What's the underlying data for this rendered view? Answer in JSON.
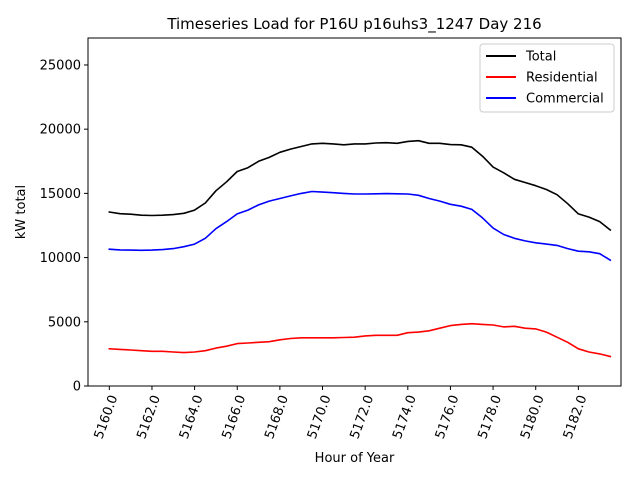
{
  "chart_data": {
    "type": "line",
    "title": "Timeseries Load for P16U p16uhs3_1247  Day 216",
    "xlabel": "Hour of Year",
    "ylabel": "kW total",
    "xlim": [
      5159.0,
      5184.0
    ],
    "ylim": [
      0,
      27100
    ],
    "x_ticks": [
      5160,
      5162,
      5164,
      5166,
      5168,
      5170,
      5172,
      5174,
      5176,
      5178,
      5180,
      5182
    ],
    "x_tick_labels": [
      "5160.0",
      "5162.0",
      "5164.0",
      "5166.0",
      "5168.0",
      "5170.0",
      "5172.0",
      "5174.0",
      "5176.0",
      "5178.0",
      "5180.0",
      "5182.0"
    ],
    "y_ticks": [
      0,
      5000,
      10000,
      15000,
      20000,
      25000
    ],
    "y_tick_labels": [
      "0",
      "5000",
      "10000",
      "15000",
      "20000",
      "25000"
    ],
    "grid": false,
    "legend_position": "top-right",
    "x": [
      5160.0,
      5160.5,
      5161.0,
      5161.5,
      5162.0,
      5162.5,
      5163.0,
      5163.5,
      5164.0,
      5164.5,
      5165.0,
      5165.5,
      5166.0,
      5166.5,
      5167.0,
      5167.5,
      5168.0,
      5168.5,
      5169.0,
      5169.5,
      5170.0,
      5170.5,
      5171.0,
      5171.5,
      5172.0,
      5172.5,
      5173.0,
      5173.5,
      5174.0,
      5174.5,
      5175.0,
      5175.5,
      5176.0,
      5176.5,
      5177.0,
      5177.5,
      5178.0,
      5178.5,
      5179.0,
      5179.5,
      5180.0,
      5180.5,
      5181.0,
      5181.5,
      5182.0,
      5182.5,
      5183.0,
      5183.5
    ],
    "series": [
      {
        "name": "Total",
        "color": "#000000",
        "values": [
          13550,
          13420,
          13380,
          13300,
          13280,
          13300,
          13350,
          13450,
          13700,
          14250,
          15200,
          15900,
          16700,
          17000,
          17500,
          17800,
          18200,
          18450,
          18650,
          18850,
          18900,
          18850,
          18780,
          18850,
          18850,
          18920,
          18950,
          18900,
          19050,
          19100,
          18900,
          18900,
          18800,
          18780,
          18600,
          17900,
          17050,
          16600,
          16100,
          15850,
          15600,
          15300,
          14900,
          14200,
          13400,
          13150,
          12800,
          12150
        ]
      },
      {
        "name": "Residential",
        "color": "#ff0000",
        "values": [
          2900,
          2850,
          2800,
          2750,
          2700,
          2700,
          2650,
          2600,
          2650,
          2750,
          2950,
          3100,
          3300,
          3350,
          3400,
          3450,
          3600,
          3700,
          3750,
          3750,
          3750,
          3750,
          3780,
          3800,
          3900,
          3950,
          3950,
          3950,
          4150,
          4200,
          4300,
          4500,
          4700,
          4800,
          4850,
          4800,
          4750,
          4600,
          4650,
          4500,
          4450,
          4200,
          3800,
          3400,
          2900,
          2650,
          2500,
          2300
        ]
      },
      {
        "name": "Commercial",
        "color": "#0000ff",
        "values": [
          10650,
          10600,
          10580,
          10570,
          10580,
          10620,
          10700,
          10850,
          11050,
          11500,
          12250,
          12800,
          13400,
          13700,
          14100,
          14400,
          14600,
          14800,
          15000,
          15150,
          15100,
          15050,
          15000,
          14950,
          14950,
          14970,
          14980,
          14970,
          14950,
          14850,
          14600,
          14400,
          14150,
          14000,
          13750,
          13100,
          12300,
          11800,
          11500,
          11300,
          11150,
          11050,
          10950,
          10700,
          10500,
          10450,
          10300,
          9800
        ]
      }
    ]
  }
}
